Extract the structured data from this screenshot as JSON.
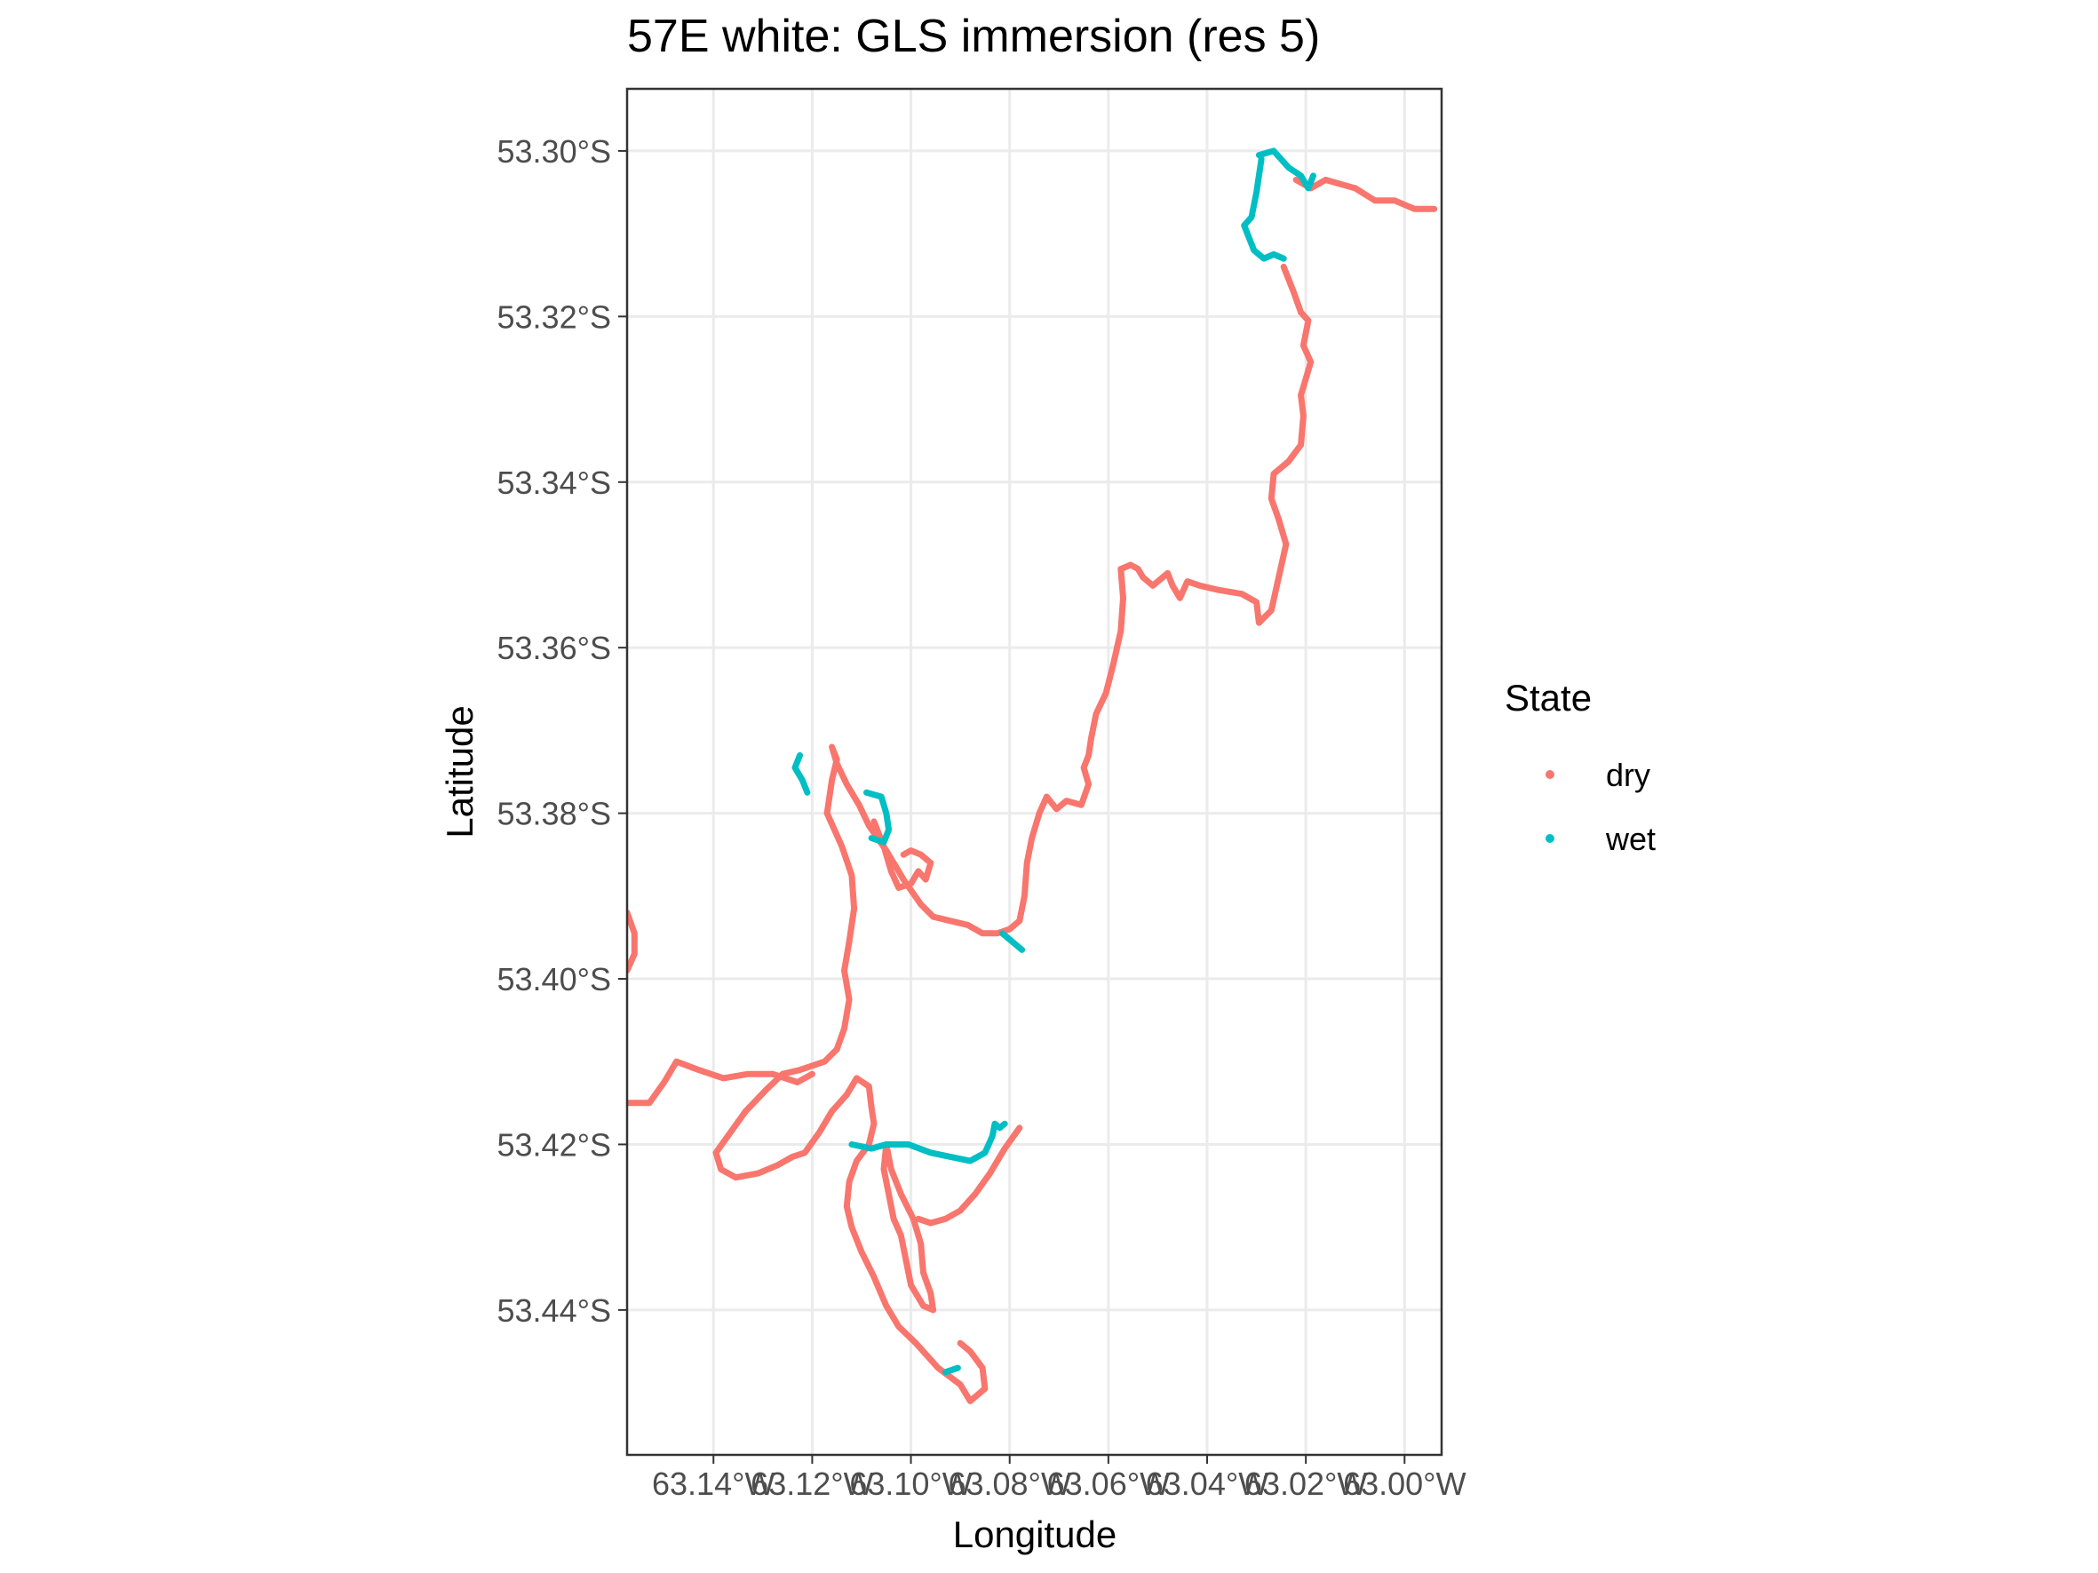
{
  "chart_data": {
    "type": "scatter",
    "title": "57E white: GLS immersion (res 5)",
    "xlabel": "Longitude",
    "ylabel": "Latitude",
    "xlim": [
      -63.1575,
      -62.9925
    ],
    "ylim": [
      -53.4575,
      -53.2925
    ],
    "x_ticks": [
      -63.14,
      -63.12,
      -63.1,
      -63.08,
      -63.06,
      -63.04,
      -63.02,
      -63.0
    ],
    "x_tick_labels": [
      "63.14°W",
      "63.12°W",
      "63.10°W",
      "63.08°W",
      "63.06°W",
      "63.04°W",
      "63.02°W",
      "63.00°W"
    ],
    "y_ticks": [
      -53.3,
      -53.32,
      -53.34,
      -53.36,
      -53.38,
      -53.4,
      -53.42,
      -53.44
    ],
    "y_tick_labels": [
      "53.30°S",
      "53.32°S",
      "53.34°S",
      "53.36°S",
      "53.38°S",
      "53.40°S",
      "53.42°S",
      "53.44°S"
    ],
    "grid": true,
    "legend_position": "right",
    "legend": {
      "title": "State",
      "entries": [
        {
          "label": "dry",
          "color": "#F8766D"
        },
        {
          "label": "wet",
          "color": "#00BFC4"
        }
      ]
    },
    "series": [
      {
        "name": "dry",
        "color": "#F8766D",
        "segments": [
          [
            [
              -63.016,
              -53.3035
            ],
            [
              -63.01,
              -53.3045
            ],
            [
              -63.006,
              -53.306
            ],
            [
              -63.002,
              -53.306
            ],
            [
              -62.998,
              -53.307
            ],
            [
              -62.994,
              -53.307
            ]
          ],
          [
            [
              -63.022,
              -53.3035
            ],
            [
              -63.019,
              -53.3045
            ],
            [
              -63.016,
              -53.3035
            ]
          ],
          [
            [
              -63.0245,
              -53.314
            ],
            [
              -63.0225,
              -53.317
            ],
            [
              -63.021,
              -53.3195
            ],
            [
              -63.0195,
              -53.3205
            ],
            [
              -63.0205,
              -53.3235
            ],
            [
              -63.019,
              -53.3255
            ],
            [
              -63.0205,
              -53.3285
            ],
            [
              -63.021,
              -53.3295
            ],
            [
              -63.0205,
              -53.332
            ],
            [
              -63.021,
              -53.3355
            ],
            [
              -63.0235,
              -53.3375
            ],
            [
              -63.0265,
              -53.339
            ],
            [
              -63.027,
              -53.342
            ],
            [
              -63.0255,
              -53.3445
            ],
            [
              -63.024,
              -53.3475
            ],
            [
              -63.0255,
              -53.3515
            ],
            [
              -63.027,
              -53.3555
            ],
            [
              -63.0295,
              -53.357
            ],
            [
              -63.03,
              -53.3545
            ],
            [
              -63.033,
              -53.3535
            ],
            [
              -63.038,
              -53.353
            ],
            [
              -63.0415,
              -53.3525
            ],
            [
              -63.044,
              -53.352
            ],
            [
              -63.0455,
              -53.354
            ],
            [
              -63.047,
              -53.3525
            ],
            [
              -63.048,
              -53.351
            ],
            [
              -63.051,
              -53.3525
            ],
            [
              -63.053,
              -53.3515
            ],
            [
              -63.054,
              -53.3505
            ],
            [
              -63.0555,
              -53.35
            ],
            [
              -63.0575,
              -53.3505
            ],
            [
              -63.057,
              -53.354
            ],
            [
              -63.0575,
              -53.358
            ],
            [
              -63.059,
              -53.362
            ],
            [
              -63.0605,
              -53.3655
            ],
            [
              -63.0625,
              -53.368
            ],
            [
              -63.0635,
              -53.371
            ],
            [
              -63.064,
              -53.373
            ],
            [
              -63.065,
              -53.3745
            ],
            [
              -63.064,
              -53.3765
            ],
            [
              -63.0655,
              -53.379
            ],
            [
              -63.0685,
              -53.3785
            ],
            [
              -63.0705,
              -53.3795
            ],
            [
              -63.0725,
              -53.378
            ],
            [
              -63.074,
              -53.38
            ],
            [
              -63.0755,
              -53.383
            ],
            [
              -63.0765,
              -53.386
            ],
            [
              -63.077,
              -53.39
            ],
            [
              -63.078,
              -53.393
            ],
            [
              -63.08,
              -53.394
            ],
            [
              -63.0825,
              -53.3945
            ],
            [
              -63.0855,
              -53.3945
            ],
            [
              -63.0885,
              -53.3935
            ],
            [
              -63.092,
              -53.393
            ],
            [
              -63.0955,
              -53.3925
            ],
            [
              -63.098,
              -53.391
            ],
            [
              -63.1015,
              -53.388
            ],
            [
              -63.105,
              -53.3845
            ],
            [
              -63.1085,
              -53.3815
            ],
            [
              -63.1105,
              -53.379
            ],
            [
              -63.113,
              -53.3765
            ],
            [
              -63.115,
              -53.374
            ],
            [
              -63.116,
              -53.372
            ],
            [
              -63.115,
              -53.3735
            ],
            [
              -63.116,
              -53.376
            ],
            [
              -63.117,
              -53.38
            ],
            [
              -63.114,
              -53.384
            ],
            [
              -63.112,
              -53.3875
            ],
            [
              -63.1115,
              -53.3915
            ],
            [
              -63.1125,
              -53.3955
            ],
            [
              -63.1135,
              -53.399
            ],
            [
              -63.1125,
              -53.4025
            ],
            [
              -63.1135,
              -53.406
            ],
            [
              -63.115,
              -53.4085
            ],
            [
              -63.1175,
              -53.41
            ],
            [
              -63.12,
              -53.4105
            ],
            [
              -63.1225,
              -53.411
            ],
            [
              -63.126,
              -53.4115
            ],
            [
              -63.1295,
              -53.4135
            ],
            [
              -63.1335,
              -53.416
            ],
            [
              -63.1365,
              -53.4185
            ],
            [
              -63.1395,
              -53.421
            ],
            [
              -63.1385,
              -53.423
            ],
            [
              -63.1355,
              -53.424
            ],
            [
              -63.131,
              -53.4235
            ],
            [
              -63.127,
              -53.4225
            ],
            [
              -63.124,
              -53.4215
            ],
            [
              -63.1215,
              -53.421
            ],
            [
              -63.1185,
              -53.4185
            ],
            [
              -63.116,
              -53.416
            ],
            [
              -63.113,
              -53.414
            ],
            [
              -63.111,
              -53.412
            ],
            [
              -63.1085,
              -53.413
            ],
            [
              -63.108,
              -53.4155
            ],
            [
              -63.1075,
              -53.4175
            ],
            [
              -63.1085,
              -53.42
            ],
            [
              -63.111,
              -53.422
            ],
            [
              -63.1125,
              -53.4245
            ],
            [
              -63.113,
              -53.4275
            ],
            [
              -63.112,
              -53.43
            ],
            [
              -63.11,
              -53.433
            ],
            [
              -63.1075,
              -53.436
            ],
            [
              -63.105,
              -53.4395
            ],
            [
              -63.1025,
              -53.442
            ],
            [
              -63.099,
              -53.444
            ],
            [
              -63.0945,
              -53.447
            ],
            [
              -63.09,
              -53.449
            ],
            [
              -63.088,
              -53.451
            ],
            [
              -63.085,
              -53.4495
            ],
            [
              -63.0855,
              -53.447
            ],
            [
              -63.088,
              -53.445
            ],
            [
              -63.09,
              -53.444
            ]
          ],
          [
            [
              -63.1575,
              -53.415
            ],
            [
              -63.153,
              -53.415
            ],
            [
              -63.15,
              -53.4125
            ],
            [
              -63.1475,
              -53.41
            ],
            [
              -63.143,
              -53.411
            ],
            [
              -63.138,
              -53.412
            ],
            [
              -63.133,
              -53.4115
            ],
            [
              -63.128,
              -53.4115
            ],
            [
              -63.123,
              -53.4125
            ],
            [
              -63.12,
              -53.4115
            ]
          ],
          [
            [
              -63.105,
              -53.42
            ],
            [
              -63.104,
              -53.423
            ],
            [
              -63.102,
              -53.426
            ],
            [
              -63.0995,
              -53.429
            ],
            [
              -63.098,
              -53.432
            ],
            [
              -63.0975,
              -53.4355
            ],
            [
              -63.096,
              -53.438
            ],
            [
              -63.0955,
              -53.44
            ],
            [
              -63.0975,
              -53.4395
            ],
            [
              -63.1,
              -53.437
            ],
            [
              -63.101,
              -53.434
            ],
            [
              -63.102,
              -53.431
            ],
            [
              -63.1035,
              -53.429
            ],
            [
              -63.1045,
              -53.426
            ],
            [
              -63.1055,
              -53.423
            ],
            [
              -63.105,
              -53.42
            ]
          ],
          [
            [
              -63.1075,
              -53.381
            ],
            [
              -63.1055,
              -53.384
            ],
            [
              -63.104,
              -53.387
            ],
            [
              -63.1025,
              -53.389
            ],
            [
              -63.1,
              -53.3885
            ],
            [
              -63.0985,
              -53.387
            ],
            [
              -63.097,
              -53.388
            ],
            [
              -63.096,
              -53.386
            ],
            [
              -63.098,
              -53.385
            ],
            [
              -63.1,
              -53.3845
            ],
            [
              -63.1015,
              -53.385
            ]
          ],
          [
            [
              -63.078,
              -53.418
            ],
            [
              -63.081,
              -53.4205
            ],
            [
              -63.084,
              -53.4235
            ],
            [
              -63.087,
              -53.426
            ],
            [
              -63.09,
              -53.428
            ],
            [
              -63.093,
              -53.429
            ],
            [
              -63.096,
              -53.4295
            ],
            [
              -63.0985,
              -53.429
            ]
          ],
          [
            [
              -63.1575,
              -53.392
            ],
            [
              -63.156,
              -53.3945
            ],
            [
              -63.156,
              -53.397
            ],
            [
              -63.1575,
              -53.399
            ]
          ]
        ]
      },
      {
        "name": "wet",
        "color": "#00BFC4",
        "segments": [
          [
            [
              -63.0295,
              -53.3005
            ],
            [
              -63.0265,
              -53.3
            ],
            [
              -63.0235,
              -53.302
            ],
            [
              -63.021,
              -53.303
            ],
            [
              -63.0195,
              -53.3045
            ],
            [
              -63.0185,
              -53.303
            ]
          ],
          [
            [
              -63.029,
              -53.301
            ],
            [
              -63.03,
              -53.305
            ],
            [
              -63.031,
              -53.308
            ],
            [
              -63.0325,
              -53.309
            ],
            [
              -63.0305,
              -53.312
            ],
            [
              -63.0285,
              -53.313
            ],
            [
              -63.0265,
              -53.3125
            ],
            [
              -63.0245,
              -53.313
            ]
          ],
          [
            [
              -63.1225,
              -53.373
            ],
            [
              -63.1235,
              -53.3745
            ],
            [
              -63.122,
              -53.376
            ],
            [
              -63.121,
              -53.3775
            ]
          ],
          [
            [
              -63.109,
              -53.3775
            ],
            [
              -63.106,
              -53.378
            ],
            [
              -63.105,
              -53.38
            ],
            [
              -63.1045,
              -53.382
            ],
            [
              -63.1055,
              -53.3835
            ],
            [
              -63.108,
              -53.383
            ]
          ],
          [
            [
              -63.0815,
              -53.3945
            ],
            [
              -63.0795,
              -53.3955
            ],
            [
              -63.0775,
              -53.3965
            ]
          ],
          [
            [
              -63.112,
              -53.42
            ],
            [
              -63.108,
              -53.4205
            ],
            [
              -63.105,
              -53.42
            ],
            [
              -63.1005,
              -53.42
            ],
            [
              -63.096,
              -53.421
            ],
            [
              -63.092,
              -53.4215
            ],
            [
              -63.088,
              -53.422
            ],
            [
              -63.085,
              -53.421
            ],
            [
              -63.0835,
              -53.419
            ],
            [
              -63.083,
              -53.4175
            ],
            [
              -63.082,
              -53.418
            ],
            [
              -63.081,
              -53.4175
            ]
          ],
          [
            [
              -63.093,
              -53.4475
            ],
            [
              -63.0905,
              -53.447
            ]
          ]
        ]
      }
    ]
  }
}
